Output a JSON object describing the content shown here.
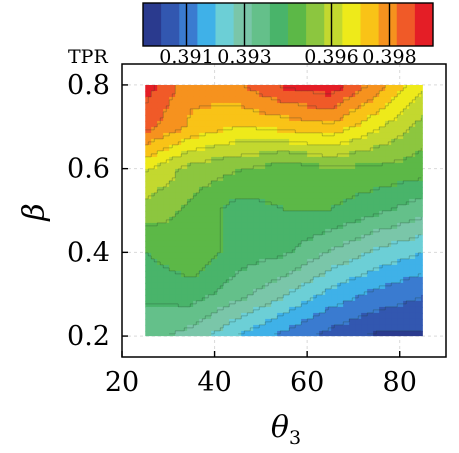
{
  "chart_data": {
    "type": "contour",
    "title": "",
    "xlabel": "θ",
    "xlabel_sub": "3",
    "ylabel": "β",
    "xlim": [
      20,
      90
    ],
    "ylim": [
      0.15,
      0.85
    ],
    "data_extent": {
      "x": [
        25,
        85
      ],
      "y": [
        0.2,
        0.8
      ]
    },
    "x_ticks": [
      20,
      40,
      60,
      80
    ],
    "x_tick_labels": [
      "20",
      "40",
      "60",
      "80"
    ],
    "y_ticks": [
      0.2,
      0.4,
      0.6,
      0.8
    ],
    "y_tick_labels": [
      "0.2",
      "0.4",
      "0.6",
      "0.8"
    ],
    "grid": true,
    "colorbar": {
      "position": "top",
      "title": "TPR",
      "min": 0.3895,
      "max": 0.3995,
      "ticks": [
        0.391,
        0.393,
        0.396,
        0.398
      ],
      "tick_labels": [
        "0.391",
        "0.393",
        "0.396",
        "0.398"
      ],
      "colors": [
        "#2a3a8e",
        "#3257b0",
        "#3a7bd0",
        "#3fb1e8",
        "#6ccfd6",
        "#7ac6a9",
        "#64c08a",
        "#49b46a",
        "#5cb847",
        "#8cc63f",
        "#c3d82f",
        "#eeea1a",
        "#f9c317",
        "#f6921e",
        "#f05a28",
        "#e41e26"
      ]
    },
    "z_grid": {
      "x": [
        25,
        35,
        45,
        55,
        65,
        75,
        85
      ],
      "y": [
        0.2,
        0.3,
        0.4,
        0.5,
        0.6,
        0.7,
        0.8
      ],
      "rows_from_y_0.2_to_0.8": [
        [
          0.3935,
          0.393,
          0.392,
          0.3912,
          0.3905,
          0.39,
          0.39
        ],
        [
          0.394,
          0.3942,
          0.3935,
          0.3927,
          0.3918,
          0.3912,
          0.3908
        ],
        [
          0.3945,
          0.395,
          0.3942,
          0.394,
          0.3932,
          0.3925,
          0.392
        ],
        [
          0.3955,
          0.395,
          0.3942,
          0.3945,
          0.3945,
          0.394,
          0.3935
        ],
        [
          0.3965,
          0.3955,
          0.3952,
          0.3948,
          0.395,
          0.395,
          0.3948
        ],
        [
          0.3985,
          0.3975,
          0.397,
          0.3972,
          0.3975,
          0.3965,
          0.3955
        ],
        [
          0.3992,
          0.3978,
          0.3982,
          0.399,
          0.3993,
          0.398,
          0.3965
        ]
      ]
    }
  }
}
